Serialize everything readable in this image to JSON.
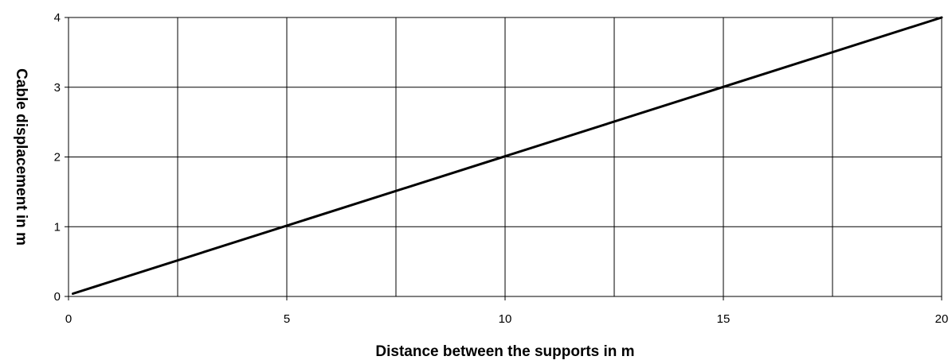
{
  "chart_data": {
    "type": "line",
    "title": "",
    "xlabel": "Distance between the supports in m",
    "ylabel": "Cable displacement in m",
    "xlim": [
      0,
      20
    ],
    "ylim": [
      0,
      4
    ],
    "x_gridlines": [
      2.5,
      5,
      7.5,
      10,
      12.5,
      15,
      17.5
    ],
    "y_gridlines": [
      1,
      2,
      3
    ],
    "x_tick_values": [
      0,
      5,
      10,
      15,
      20
    ],
    "x_tick_labels": [
      "0",
      "5",
      "10",
      "15",
      "20"
    ],
    "y_tick_values": [
      0,
      1,
      2,
      3,
      4
    ],
    "y_tick_labels": [
      "0",
      "1",
      "2",
      "3",
      "4"
    ],
    "grid": true,
    "legend": "none",
    "series": [
      {
        "x": [
          0.1,
          20
        ],
        "y": [
          0.04,
          4
        ],
        "color": "#000000"
      }
    ]
  }
}
